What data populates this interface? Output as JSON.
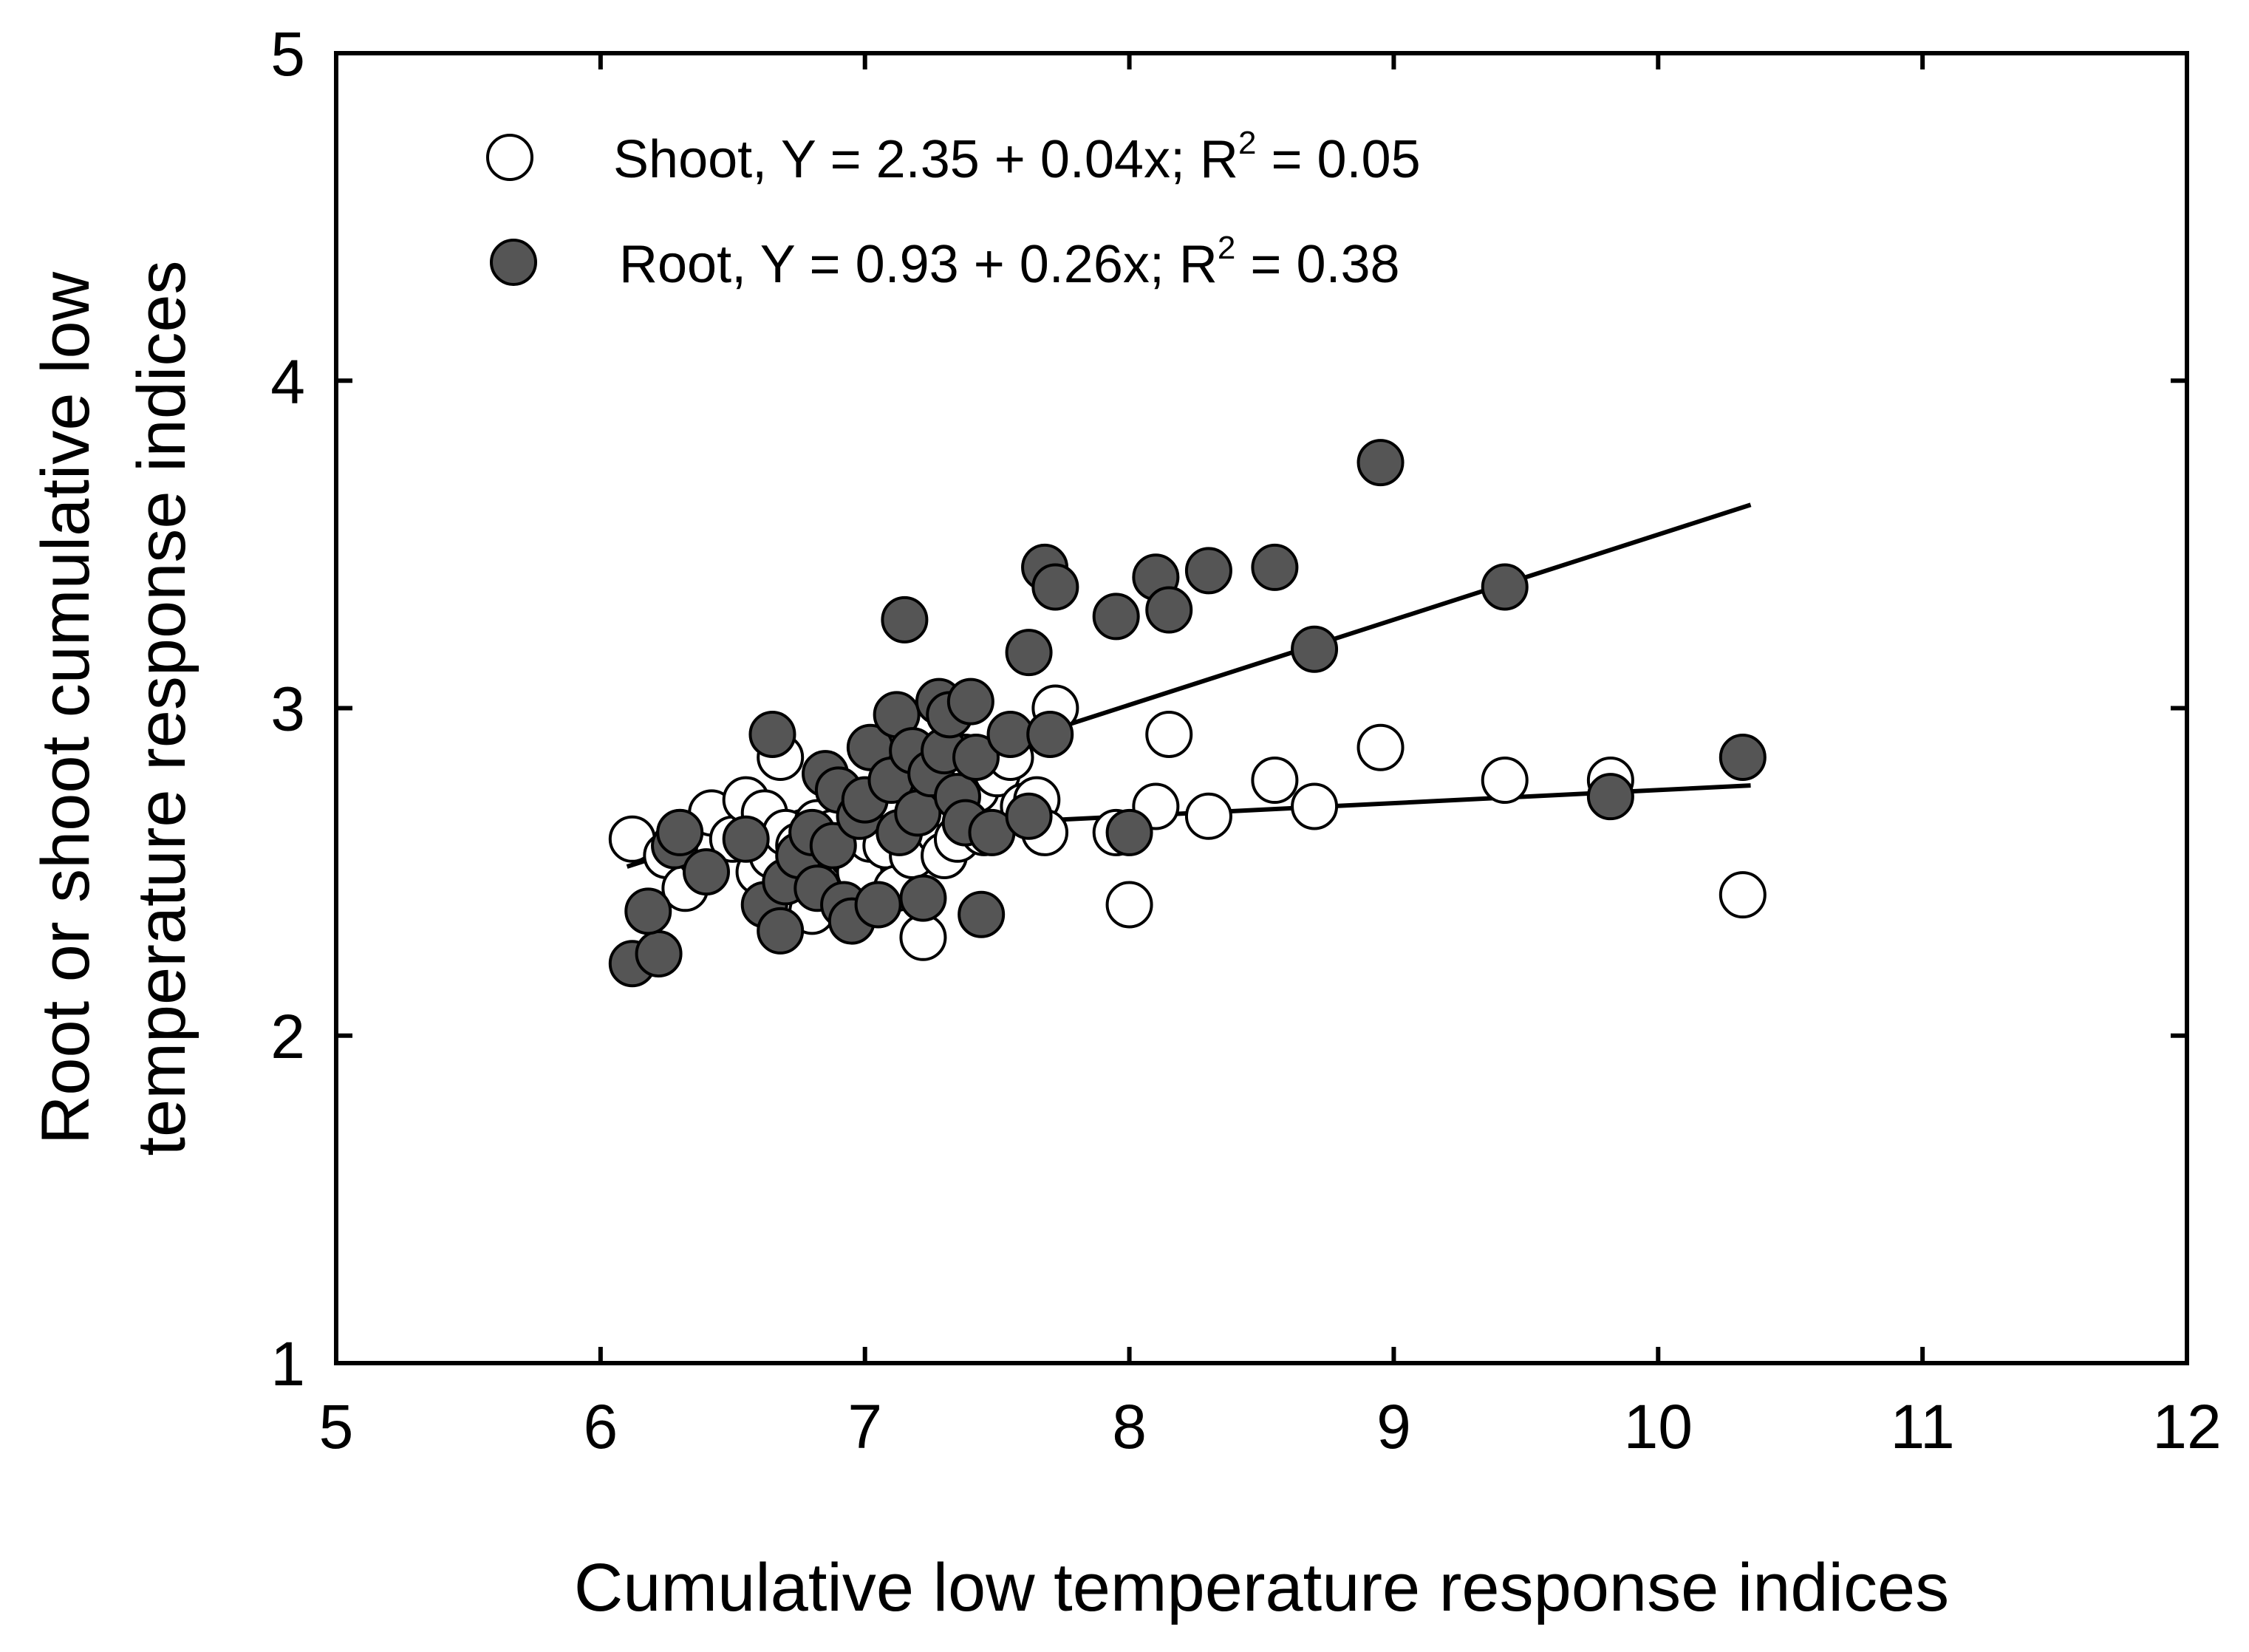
{
  "chart_data": {
    "type": "scatter",
    "title": "",
    "xlabel": "Cumulative low temperature response indices",
    "ylabel_lines": [
      "Root or shoot cumulative low",
      "temperature response indices"
    ],
    "xlim": [
      5,
      12
    ],
    "ylim": [
      1,
      5
    ],
    "xticks": [
      "5",
      "6",
      "7",
      "8",
      "9",
      "10",
      "11",
      "12"
    ],
    "yticks": [
      "1",
      "2",
      "3",
      "4",
      "5"
    ],
    "grid": false,
    "legend_position": "top-left",
    "series": [
      {
        "name": "Shoot",
        "marker": "open-circle",
        "legend": {
          "prefix": "Shoot, Y = 2.35 + 0.04x; R",
          "sup": "2",
          "suffix": " = 0.05"
        },
        "fit": {
          "intercept": 2.35,
          "slope": 0.04,
          "r2": 0.05,
          "x_range": [
            6.1,
            10.35
          ]
        },
        "points": [
          [
            6.12,
            2.6
          ],
          [
            6.25,
            2.55
          ],
          [
            6.3,
            2.62
          ],
          [
            6.32,
            2.45
          ],
          [
            6.38,
            2.55
          ],
          [
            6.42,
            2.68
          ],
          [
            6.5,
            2.6
          ],
          [
            6.55,
            2.72
          ],
          [
            6.6,
            2.5
          ],
          [
            6.62,
            2.68
          ],
          [
            6.65,
            2.55
          ],
          [
            6.68,
            2.85
          ],
          [
            6.7,
            2.62
          ],
          [
            6.72,
            2.45
          ],
          [
            6.75,
            2.58
          ],
          [
            6.8,
            2.38
          ],
          [
            6.82,
            2.65
          ],
          [
            6.85,
            2.5
          ],
          [
            6.88,
            2.62
          ],
          [
            6.9,
            2.45
          ],
          [
            6.95,
            2.55
          ],
          [
            6.98,
            2.5
          ],
          [
            7.0,
            2.65
          ],
          [
            7.02,
            2.6
          ],
          [
            7.05,
            2.7
          ],
          [
            7.08,
            2.58
          ],
          [
            7.12,
            2.45
          ],
          [
            7.15,
            2.62
          ],
          [
            7.18,
            2.55
          ],
          [
            7.2,
            2.75
          ],
          [
            7.22,
            2.3
          ],
          [
            7.25,
            2.8
          ],
          [
            7.28,
            2.62
          ],
          [
            7.3,
            2.55
          ],
          [
            7.32,
            2.7
          ],
          [
            7.35,
            2.6
          ],
          [
            7.38,
            2.85
          ],
          [
            7.4,
            2.65
          ],
          [
            7.42,
            2.75
          ],
          [
            7.45,
            2.62
          ],
          [
            7.5,
            2.8
          ],
          [
            7.55,
            2.85
          ],
          [
            7.6,
            2.7
          ],
          [
            7.65,
            2.72
          ],
          [
            7.68,
            2.62
          ],
          [
            7.72,
            3.0
          ],
          [
            7.95,
            2.62
          ],
          [
            8.0,
            2.4
          ],
          [
            8.1,
            2.7
          ],
          [
            8.15,
            2.92
          ],
          [
            8.3,
            2.67
          ],
          [
            8.55,
            2.78
          ],
          [
            8.7,
            2.7
          ],
          [
            8.95,
            2.88
          ],
          [
            9.42,
            2.78
          ],
          [
            9.82,
            2.78
          ],
          [
            10.32,
            2.43
          ]
        ]
      },
      {
        "name": "Root",
        "marker": "filled-circle",
        "legend": {
          "prefix": "Root, Y = 0.93 + 0.26x; R",
          "sup": "2",
          "suffix": " = 0.38"
        },
        "fit": {
          "intercept": 0.93,
          "slope": 0.26,
          "r2": 0.38,
          "x_range": [
            6.1,
            10.35
          ]
        },
        "points": [
          [
            6.12,
            2.22
          ],
          [
            6.22,
            2.25
          ],
          [
            6.18,
            2.38
          ],
          [
            6.28,
            2.58
          ],
          [
            6.3,
            2.62
          ],
          [
            6.4,
            2.5
          ],
          [
            6.55,
            2.6
          ],
          [
            6.62,
            2.4
          ],
          [
            6.65,
            2.92
          ],
          [
            6.68,
            2.32
          ],
          [
            6.7,
            2.47
          ],
          [
            6.75,
            2.55
          ],
          [
            6.8,
            2.62
          ],
          [
            6.82,
            2.45
          ],
          [
            6.85,
            2.8
          ],
          [
            6.88,
            2.58
          ],
          [
            6.9,
            2.75
          ],
          [
            6.92,
            2.4
          ],
          [
            6.95,
            2.35
          ],
          [
            6.98,
            2.67
          ],
          [
            7.0,
            2.72
          ],
          [
            7.02,
            2.88
          ],
          [
            7.05,
            2.4
          ],
          [
            7.1,
            2.78
          ],
          [
            7.12,
            2.98
          ],
          [
            7.13,
            2.62
          ],
          [
            7.15,
            3.27
          ],
          [
            7.18,
            2.87
          ],
          [
            7.2,
            2.68
          ],
          [
            7.22,
            2.42
          ],
          [
            7.25,
            2.8
          ],
          [
            7.28,
            3.02
          ],
          [
            7.3,
            2.87
          ],
          [
            7.32,
            2.98
          ],
          [
            7.35,
            2.73
          ],
          [
            7.38,
            2.65
          ],
          [
            7.4,
            3.02
          ],
          [
            7.42,
            2.85
          ],
          [
            7.44,
            2.37
          ],
          [
            7.48,
            2.62
          ],
          [
            7.55,
            2.92
          ],
          [
            7.62,
            2.67
          ],
          [
            7.62,
            3.17
          ],
          [
            7.68,
            3.43
          ],
          [
            7.7,
            2.92
          ],
          [
            7.72,
            3.37
          ],
          [
            7.95,
            3.28
          ],
          [
            8.0,
            2.62
          ],
          [
            8.1,
            3.4
          ],
          [
            8.15,
            3.3
          ],
          [
            8.3,
            3.42
          ],
          [
            8.55,
            3.43
          ],
          [
            8.7,
            3.18
          ],
          [
            8.95,
            3.75
          ],
          [
            9.42,
            3.37
          ],
          [
            9.82,
            2.73
          ],
          [
            10.32,
            2.85
          ]
        ]
      }
    ]
  }
}
